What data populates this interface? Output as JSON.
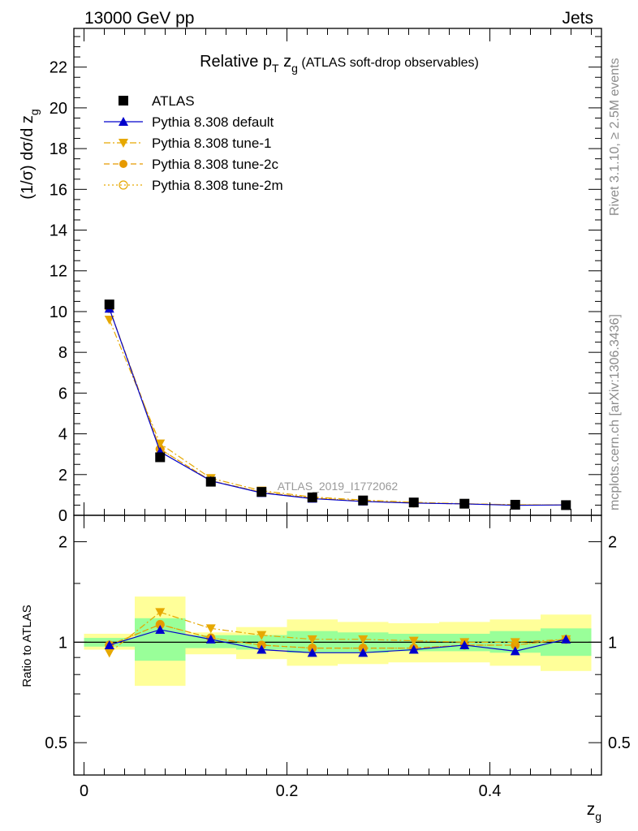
{
  "header": {
    "left": "13000 GeV pp",
    "right": "Jets"
  },
  "side_labels": {
    "rivet": "Rivet 3.1.10, ≥ 2.5M events",
    "mcplots": "mcplots.cern.ch [arXiv:1306.3436]"
  },
  "watermark": "ATLAS_2019_I1772062",
  "chart_data": [
    {
      "type": "line",
      "title_parts": {
        "pre": "Relative p",
        "sub1": "T",
        "mid": " z",
        "sub2": "g",
        "post": " (ATLAS soft-drop observables)"
      },
      "ylabel_parts": {
        "main": "(1/σ) dσ/d z",
        "sub": "g"
      },
      "xlabel_parts": {
        "main": "z",
        "sub": "g"
      },
      "xlim": [
        -0.01,
        0.51
      ],
      "ylim": [
        0,
        23.9
      ],
      "yticks": [
        0,
        2,
        4,
        6,
        8,
        10,
        12,
        14,
        16,
        18,
        20,
        22
      ],
      "ytick_labels": [
        "0",
        "2",
        "4",
        "6",
        "8",
        "10",
        "12",
        "14",
        "16",
        "18",
        "20",
        "22"
      ],
      "legend_position": "top-left",
      "x": [
        0.025,
        0.075,
        0.125,
        0.175,
        0.225,
        0.275,
        0.325,
        0.375,
        0.425,
        0.475
      ],
      "series": [
        {
          "name": "ATLAS",
          "color": "#000000",
          "marker": "square",
          "line": "none",
          "values": [
            10.35,
            2.85,
            1.65,
            1.15,
            0.88,
            0.73,
            0.63,
            0.57,
            0.52,
            0.5
          ]
        },
        {
          "name": "Pythia 8.308 default",
          "color": "#0000cc",
          "marker": "triangle-up",
          "line": "solid",
          "values": [
            10.15,
            3.12,
            1.69,
            1.1,
            0.82,
            0.68,
            0.6,
            0.56,
            0.49,
            0.51
          ]
        },
        {
          "name": "Pythia 8.308 tune-1",
          "color": "#e6a800",
          "marker": "triangle-down",
          "line": "dashdot",
          "values": [
            9.6,
            3.52,
            1.82,
            1.21,
            0.9,
            0.75,
            0.64,
            0.57,
            0.52,
            0.51
          ]
        },
        {
          "name": "Pythia 8.308 tune-2c",
          "color": "#e69a00",
          "marker": "circle",
          "line": "dashed",
          "values": [
            10.15,
            3.25,
            1.7,
            1.13,
            0.85,
            0.7,
            0.61,
            0.56,
            0.51,
            0.51
          ]
        },
        {
          "name": "Pythia 8.308 tune-2m",
          "color": "#e6a800",
          "marker": "circle-open",
          "line": "dotted",
          "values": [
            10.15,
            3.25,
            1.7,
            1.13,
            0.85,
            0.7,
            0.61,
            0.56,
            0.51,
            0.51
          ]
        }
      ]
    },
    {
      "type": "line",
      "ylabel": "Ratio to ATLAS",
      "log_y": true,
      "ylim": [
        0.4,
        2.4
      ],
      "yticks": [
        0.5,
        1,
        2
      ],
      "ytick_labels": [
        "0.5",
        "1",
        "2"
      ],
      "xticks": [
        0,
        0.2,
        0.4
      ],
      "xtick_labels": [
        "0",
        "0.2",
        "0.4"
      ],
      "bins": [
        [
          0,
          0.05
        ],
        [
          0.05,
          0.1
        ],
        [
          0.1,
          0.15
        ],
        [
          0.15,
          0.2
        ],
        [
          0.2,
          0.25
        ],
        [
          0.25,
          0.3
        ],
        [
          0.3,
          0.35
        ],
        [
          0.35,
          0.4
        ],
        [
          0.4,
          0.45
        ],
        [
          0.45,
          0.5
        ]
      ],
      "band_inner": [
        [
          0.97,
          1.03
        ],
        [
          0.88,
          1.18
        ],
        [
          0.96,
          1.05
        ],
        [
          0.95,
          1.05
        ],
        [
          0.93,
          1.08
        ],
        [
          0.93,
          1.07
        ],
        [
          0.94,
          1.06
        ],
        [
          0.94,
          1.06
        ],
        [
          0.93,
          1.08
        ],
        [
          0.91,
          1.1
        ]
      ],
      "band_outer": [
        [
          0.95,
          1.06
        ],
        [
          0.74,
          1.37
        ],
        [
          0.92,
          1.07
        ],
        [
          0.89,
          1.11
        ],
        [
          0.85,
          1.17
        ],
        [
          0.86,
          1.15
        ],
        [
          0.87,
          1.14
        ],
        [
          0.87,
          1.15
        ],
        [
          0.85,
          1.17
        ],
        [
          0.82,
          1.21
        ]
      ],
      "band_colors": {
        "inner": "#99ff99",
        "outer": "#ffff99"
      },
      "x": [
        0.025,
        0.075,
        0.125,
        0.175,
        0.225,
        0.275,
        0.325,
        0.375,
        0.425,
        0.475
      ],
      "series": [
        {
          "name": "Pythia 8.308 default",
          "values": [
            0.98,
            1.09,
            1.02,
            0.95,
            0.93,
            0.93,
            0.95,
            0.98,
            0.94,
            1.02
          ]
        },
        {
          "name": "Pythia 8.308 tune-1",
          "values": [
            0.93,
            1.23,
            1.1,
            1.05,
            1.02,
            1.02,
            1.01,
            1.0,
            1.0,
            1.02
          ]
        },
        {
          "name": "Pythia 8.308 tune-2c",
          "values": [
            0.98,
            1.13,
            1.03,
            0.98,
            0.96,
            0.96,
            0.96,
            0.98,
            0.98,
            1.02
          ]
        },
        {
          "name": "Pythia 8.308 tune-2m",
          "values": [
            0.98,
            1.13,
            1.03,
            0.98,
            0.96,
            0.96,
            0.96,
            0.98,
            0.98,
            1.02
          ]
        }
      ]
    }
  ]
}
